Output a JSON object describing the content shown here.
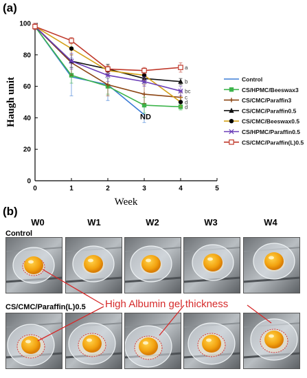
{
  "panel_a_label": "(a)",
  "panel_b_label": "(b)",
  "chart_data": {
    "type": "line",
    "xlabel": "Week",
    "ylabel": "Haugh unit",
    "xlim": [
      0,
      5
    ],
    "ylim": [
      0,
      100
    ],
    "xticks": [
      0,
      1,
      2,
      3,
      4,
      5
    ],
    "yticks": [
      0,
      20,
      40,
      60,
      80,
      100
    ],
    "grid": false,
    "legend_position": "right",
    "series": [
      {
        "name": "Control",
        "color": "#3a7bd5",
        "marker": "none",
        "x": [
          0,
          1,
          2,
          3
        ],
        "y": [
          98,
          66,
          61,
          42
        ],
        "err": [
          2,
          12,
          10,
          5
        ],
        "letter": null
      },
      {
        "name": "CS/HPMC/Beeswax3",
        "color": "#3cb44b",
        "marker": "square",
        "x": [
          0,
          1,
          2,
          3,
          4
        ],
        "y": [
          98,
          67,
          60,
          48,
          47
        ],
        "err": [
          2,
          5,
          5,
          5,
          2
        ],
        "letter": "d"
      },
      {
        "name": "CS/CMC/Paraffin3",
        "color": "#8b4513",
        "marker": "plus",
        "x": [
          0,
          1,
          2,
          3,
          4
        ],
        "y": [
          98,
          75,
          61,
          55,
          53
        ],
        "err": [
          2,
          8,
          7,
          6,
          3
        ],
        "letter": "c"
      },
      {
        "name": "CS/CMC/Paraffin0.5",
        "color": "#111111",
        "marker": "triangle",
        "x": [
          0,
          1,
          2,
          3,
          4
        ],
        "y": [
          98,
          76,
          71,
          65,
          63
        ],
        "err": [
          2,
          4,
          3,
          3,
          2
        ],
        "letter": "b"
      },
      {
        "name": "CS/CMC/Beeswax0.5",
        "color": "#d4a017",
        "marker": "circle",
        "x": [
          0,
          1,
          2,
          3,
          4
        ],
        "y": [
          98,
          84,
          70,
          67,
          50
        ],
        "err": [
          2,
          4,
          3,
          3,
          3
        ],
        "letter": "d"
      },
      {
        "name": "CS/HPMC/Paraffin0.5",
        "color": "#6a3db8",
        "marker": "star",
        "x": [
          0,
          1,
          2,
          3,
          4
        ],
        "y": [
          98,
          76,
          67,
          63,
          57
        ],
        "err": [
          2,
          5,
          4,
          3,
          3
        ],
        "letter": "bc"
      },
      {
        "name": "CS/CMC/Paraffin(L)0.5",
        "color": "#c0392b",
        "marker": "open-square",
        "x": [
          0,
          1,
          2,
          3,
          4
        ],
        "y": [
          98,
          89,
          71,
          70,
          72
        ],
        "err": [
          2,
          2,
          2,
          2,
          3
        ],
        "letter": "a"
      }
    ],
    "annotations": [
      {
        "text": "ND",
        "x": 3,
        "y": 40
      }
    ]
  },
  "photo_grid": {
    "columns": [
      "W0",
      "W1",
      "W2",
      "W3",
      "W4"
    ],
    "rows": [
      "Control",
      "CS/CMC/Paraffin(L)0.5"
    ],
    "callout": "High Albumin gel thickness"
  }
}
